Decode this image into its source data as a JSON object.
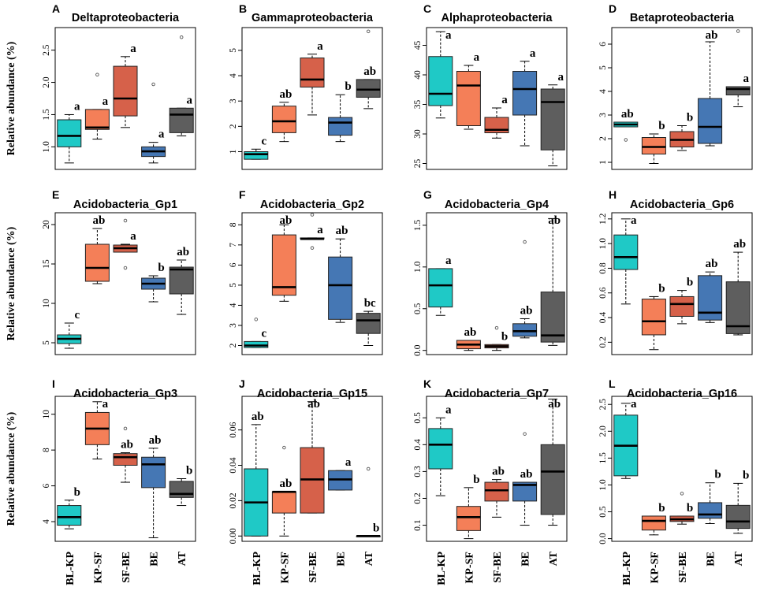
{
  "y_axis_label": "Relative abundance (%)",
  "categories": [
    "BL-KP",
    "KP-SF",
    "SF-BE",
    "BE",
    "AT"
  ],
  "colors": [
    "#1fc9c6",
    "#f47f58",
    "#d6614a",
    "#4577b4",
    "#5e5e5e"
  ],
  "chart_data": [
    {
      "type": "box",
      "letter": "A",
      "title": "Deltaproteobacteria",
      "ylim": [
        0.65,
        2.85
      ],
      "ticks": [
        1.0,
        1.5,
        2.0,
        2.5
      ],
      "tick_labels": [
        "1.0",
        "1.5",
        "2.0",
        "2.5"
      ],
      "boxes": [
        {
          "wl": 0.75,
          "q1": 1.0,
          "med": 1.17,
          "q3": 1.42,
          "wh": 1.5,
          "out": []
        },
        {
          "wl": 1.12,
          "q1": 1.27,
          "med": 1.3,
          "q3": 1.58,
          "wh": 1.58,
          "out": [
            2.12
          ]
        },
        {
          "wl": 1.3,
          "q1": 1.48,
          "med": 1.75,
          "q3": 2.25,
          "wh": 2.4,
          "out": []
        },
        {
          "wl": 0.75,
          "q1": 0.85,
          "med": 0.93,
          "q3": 1.0,
          "wh": 1.07,
          "out": [
            1.97
          ]
        },
        {
          "wl": 1.17,
          "q1": 1.22,
          "med": 1.5,
          "q3": 1.6,
          "wh": 1.6,
          "out": [
            2.7
          ]
        }
      ],
      "sig": [
        "a",
        "a",
        "a",
        "a",
        "a"
      ]
    },
    {
      "type": "box",
      "letter": "B",
      "title": "Gammaproteobacteria",
      "ylim": [
        0.3,
        5.9
      ],
      "ticks": [
        1,
        2,
        3,
        4,
        5
      ],
      "tick_labels": [
        "1",
        "2",
        "3",
        "4",
        "5"
      ],
      "boxes": [
        {
          "wl": 0.7,
          "q1": 0.7,
          "med": 0.9,
          "q3": 1.0,
          "wh": 1.1,
          "out": []
        },
        {
          "wl": 1.4,
          "q1": 1.75,
          "med": 2.2,
          "q3": 2.8,
          "wh": 2.95,
          "out": []
        },
        {
          "wl": 2.45,
          "q1": 3.55,
          "med": 3.85,
          "q3": 4.7,
          "wh": 4.85,
          "out": []
        },
        {
          "wl": 1.4,
          "q1": 1.65,
          "med": 2.15,
          "q3": 2.35,
          "wh": 3.25,
          "out": []
        },
        {
          "wl": 2.7,
          "q1": 3.15,
          "med": 3.45,
          "q3": 3.85,
          "wh": 3.85,
          "out": [
            5.75
          ]
        }
      ],
      "sig": [
        "c",
        "ab",
        "a",
        "b",
        "ab"
      ]
    },
    {
      "type": "box",
      "letter": "C",
      "title": "Alphaproteobacteria",
      "ylim": [
        24,
        48
      ],
      "ticks": [
        25,
        30,
        35,
        40,
        45
      ],
      "tick_labels": [
        "25",
        "30",
        "35",
        "40",
        "45"
      ],
      "boxes": [
        {
          "wl": 32.7,
          "q1": 34.8,
          "med": 36.8,
          "q3": 43.1,
          "wh": 47.3,
          "out": []
        },
        {
          "wl": 30.8,
          "q1": 31.4,
          "med": 38.2,
          "q3": 40.6,
          "wh": 41.6,
          "out": []
        },
        {
          "wl": 29.3,
          "q1": 30.2,
          "med": 30.7,
          "q3": 32.8,
          "wh": 34.4,
          "out": []
        },
        {
          "wl": 28.0,
          "q1": 33.2,
          "med": 37.6,
          "q3": 40.6,
          "wh": 42.3,
          "out": []
        },
        {
          "wl": 24.6,
          "q1": 27.3,
          "med": 35.4,
          "q3": 37.6,
          "wh": 38.3,
          "out": []
        }
      ],
      "sig": [
        "a",
        "a",
        "a",
        "a",
        "a"
      ]
    },
    {
      "type": "box",
      "letter": "D",
      "title": "Betaproteobacteria",
      "ylim": [
        0.7,
        6.7
      ],
      "ticks": [
        1,
        2,
        3,
        4,
        5,
        6
      ],
      "tick_labels": [
        "1",
        "2",
        "3",
        "4",
        "5",
        "6"
      ],
      "boxes": [
        {
          "wl": 2.5,
          "q1": 2.5,
          "med": 2.6,
          "q3": 2.7,
          "wh": 2.7,
          "out": [
            1.95
          ]
        },
        {
          "wl": 0.95,
          "q1": 1.35,
          "med": 1.65,
          "q3": 2.05,
          "wh": 2.2,
          "out": []
        },
        {
          "wl": 1.5,
          "q1": 1.65,
          "med": 1.95,
          "q3": 2.3,
          "wh": 2.55,
          "out": []
        },
        {
          "wl": 1.7,
          "q1": 1.8,
          "med": 2.5,
          "q3": 3.7,
          "wh": 6.1,
          "out": []
        },
        {
          "wl": 3.35,
          "q1": 3.85,
          "med": 4.1,
          "q3": 4.2,
          "wh": 4.2,
          "out": [
            6.55
          ]
        }
      ],
      "sig": [
        "ab",
        "b",
        "b",
        "ab",
        "a"
      ]
    },
    {
      "type": "box",
      "letter": "E",
      "title": "Acidobacteria_Gp1",
      "ylim": [
        3.5,
        21.5
      ],
      "ticks": [
        5,
        10,
        15,
        20
      ],
      "tick_labels": [
        "5",
        "10",
        "15",
        "20"
      ],
      "boxes": [
        {
          "wl": 4.3,
          "q1": 4.9,
          "med": 5.5,
          "q3": 6.0,
          "wh": 7.5,
          "out": []
        },
        {
          "wl": 12.5,
          "q1": 12.8,
          "med": 14.5,
          "q3": 17.5,
          "wh": 19.5,
          "out": []
        },
        {
          "wl": 16.5,
          "q1": 16.5,
          "med": 17.0,
          "q3": 17.4,
          "wh": 17.5,
          "out": [
            14.5,
            20.5
          ]
        },
        {
          "wl": 10.2,
          "q1": 11.8,
          "med": 12.5,
          "q3": 13.2,
          "wh": 13.5,
          "out": []
        },
        {
          "wl": 8.6,
          "q1": 11.2,
          "med": 14.3,
          "q3": 14.6,
          "wh": 15.5,
          "out": []
        }
      ],
      "sig": [
        "c",
        "ab",
        "a",
        "b",
        "ab"
      ]
    },
    {
      "type": "box",
      "letter": "F",
      "title": "Acidobacteria_Gp2",
      "ylim": [
        1.55,
        8.6
      ],
      "ticks": [
        2,
        3,
        4,
        5,
        6,
        7,
        8
      ],
      "tick_labels": [
        "2",
        "3",
        "4",
        "5",
        "6",
        "7",
        "8"
      ],
      "boxes": [
        {
          "wl": 1.9,
          "q1": 1.9,
          "med": 2.0,
          "q3": 2.2,
          "wh": 2.2,
          "out": [
            3.3
          ]
        },
        {
          "wl": 4.2,
          "q1": 4.5,
          "med": 4.9,
          "q3": 7.5,
          "wh": 8.0,
          "out": []
        },
        {
          "wl": 7.3,
          "q1": 7.3,
          "med": 7.3,
          "q3": 7.35,
          "wh": 7.35,
          "out": [
            6.85,
            8.5
          ]
        },
        {
          "wl": 3.15,
          "q1": 3.3,
          "med": 5.0,
          "q3": 6.4,
          "wh": 7.3,
          "out": []
        },
        {
          "wl": 2.0,
          "q1": 2.6,
          "med": 3.25,
          "q3": 3.6,
          "wh": 3.7,
          "out": []
        }
      ],
      "sig": [
        "c",
        "ab",
        "a",
        "ab",
        "bc"
      ]
    },
    {
      "type": "box",
      "letter": "G",
      "title": "Acidobacteria_Gp4",
      "ylim": [
        -0.05,
        1.65
      ],
      "ticks": [
        0.0,
        0.5,
        1.0,
        1.5
      ],
      "tick_labels": [
        "0.0",
        "0.5",
        "1.0",
        "1.5"
      ],
      "boxes": [
        {
          "wl": 0.42,
          "q1": 0.52,
          "med": 0.78,
          "q3": 0.98,
          "wh": 0.98,
          "out": []
        },
        {
          "wl": 0.0,
          "q1": 0.02,
          "med": 0.07,
          "q3": 0.12,
          "wh": 0.12,
          "out": []
        },
        {
          "wl": 0.0,
          "q1": 0.03,
          "med": 0.05,
          "q3": 0.07,
          "wh": 0.07,
          "out": [
            0.27
          ]
        },
        {
          "wl": 0.15,
          "q1": 0.17,
          "med": 0.23,
          "q3": 0.32,
          "wh": 0.38,
          "out": [
            1.3
          ]
        },
        {
          "wl": 0.06,
          "q1": 0.1,
          "med": 0.18,
          "q3": 0.7,
          "wh": 1.58,
          "out": []
        }
      ],
      "sig": [
        "a",
        "ab",
        "b",
        "ab",
        "ab"
      ]
    },
    {
      "type": "box",
      "letter": "H",
      "title": "Acidobacteria_Gp6",
      "ylim": [
        0.1,
        1.25
      ],
      "ticks": [
        0.2,
        0.4,
        0.6,
        0.8,
        1.0,
        1.2
      ],
      "tick_labels": [
        "0.2",
        "0.4",
        "0.6",
        "0.8",
        "1.0",
        "1.2"
      ],
      "boxes": [
        {
          "wl": 0.51,
          "q1": 0.79,
          "med": 0.89,
          "q3": 1.07,
          "wh": 1.2,
          "out": []
        },
        {
          "wl": 0.14,
          "q1": 0.26,
          "med": 0.37,
          "q3": 0.55,
          "wh": 0.57,
          "out": []
        },
        {
          "wl": 0.35,
          "q1": 0.41,
          "med": 0.51,
          "q3": 0.57,
          "wh": 0.62,
          "out": []
        },
        {
          "wl": 0.36,
          "q1": 0.38,
          "med": 0.44,
          "q3": 0.74,
          "wh": 0.77,
          "out": []
        },
        {
          "wl": 0.26,
          "q1": 0.27,
          "med": 0.33,
          "q3": 0.69,
          "wh": 0.93,
          "out": []
        }
      ],
      "sig": [
        "a",
        "b",
        "b",
        "ab",
        "ab"
      ]
    },
    {
      "type": "box",
      "letter": "I",
      "title": "Acidobacteria_Gp3",
      "ylim": [
        2.9,
        11.0
      ],
      "ticks": [
        4,
        6,
        8,
        10
      ],
      "tick_labels": [
        "4",
        "6",
        "8",
        "10"
      ],
      "boxes": [
        {
          "wl": 3.6,
          "q1": 3.8,
          "med": 4.25,
          "q3": 4.9,
          "wh": 5.2,
          "out": []
        },
        {
          "wl": 7.5,
          "q1": 8.3,
          "med": 9.2,
          "q3": 10.1,
          "wh": 10.7,
          "out": []
        },
        {
          "wl": 6.2,
          "q1": 7.15,
          "med": 7.6,
          "q3": 7.8,
          "wh": 7.85,
          "out": [
            9.2
          ]
        },
        {
          "wl": 3.1,
          "q1": 5.9,
          "med": 7.2,
          "q3": 7.6,
          "wh": 8.1,
          "out": []
        },
        {
          "wl": 4.9,
          "q1": 5.35,
          "med": 5.55,
          "q3": 6.25,
          "wh": 6.4,
          "out": []
        }
      ],
      "sig": [
        "b",
        "a",
        "ab",
        "ab",
        "b"
      ]
    },
    {
      "type": "box",
      "letter": "J",
      "title": "Acidobacteria_Gp15",
      "ylim": [
        -0.003,
        0.079
      ],
      "ticks": [
        0.0,
        0.02,
        0.04,
        0.06
      ],
      "tick_labels": [
        "0.00",
        "0.02",
        "0.04",
        "0.06"
      ],
      "boxes": [
        {
          "wl": 0.0,
          "q1": 0.0,
          "med": 0.019,
          "q3": 0.038,
          "wh": 0.063,
          "out": []
        },
        {
          "wl": 0.0,
          "q1": 0.013,
          "med": 0.025,
          "q3": 0.025,
          "wh": 0.025,
          "out": [
            0.05
          ]
        },
        {
          "wl": 0.013,
          "q1": 0.013,
          "med": 0.032,
          "q3": 0.05,
          "wh": 0.076,
          "out": []
        },
        {
          "wl": 0.026,
          "q1": 0.026,
          "med": 0.032,
          "q3": 0.037,
          "wh": 0.037,
          "out": []
        },
        {
          "wl": 0.0,
          "q1": 0.0,
          "med": 0.0,
          "q3": 0.0,
          "wh": 0.0,
          "out": [
            0.038
          ]
        }
      ],
      "sig": [
        "ab",
        "ab",
        "ab",
        "a",
        "b"
      ]
    },
    {
      "type": "box",
      "letter": "K",
      "title": "Acidobacteria_Gp7",
      "ylim": [
        0.04,
        0.58
      ],
      "ticks": [
        0.1,
        0.2,
        0.3,
        0.4,
        0.5
      ],
      "tick_labels": [
        "0.1",
        "0.2",
        "0.3",
        "0.4",
        "0.5"
      ],
      "boxes": [
        {
          "wl": 0.21,
          "q1": 0.31,
          "med": 0.4,
          "q3": 0.46,
          "wh": 0.5,
          "out": []
        },
        {
          "wl": 0.05,
          "q1": 0.08,
          "med": 0.13,
          "q3": 0.17,
          "wh": 0.24,
          "out": []
        },
        {
          "wl": 0.13,
          "q1": 0.19,
          "med": 0.23,
          "q3": 0.26,
          "wh": 0.27,
          "out": []
        },
        {
          "wl": 0.1,
          "q1": 0.19,
          "med": 0.25,
          "q3": 0.26,
          "wh": 0.26,
          "out": [
            0.44
          ]
        },
        {
          "wl": 0.1,
          "q1": 0.14,
          "med": 0.3,
          "q3": 0.4,
          "wh": 0.57,
          "out": []
        }
      ],
      "sig": [
        "a",
        "b",
        "ab",
        "ab",
        "ab"
      ]
    },
    {
      "type": "box",
      "letter": "L",
      "title": "Acidobacteria_Gp16",
      "ylim": [
        -0.05,
        2.65
      ],
      "ticks": [
        0.0,
        0.5,
        1.0,
        1.5,
        2.0,
        2.5
      ],
      "tick_labels": [
        "0.0",
        "0.5",
        "1.0",
        "1.5",
        "2.0",
        "2.5"
      ],
      "boxes": [
        {
          "wl": 1.12,
          "q1": 1.17,
          "med": 1.73,
          "q3": 2.3,
          "wh": 2.52,
          "out": []
        },
        {
          "wl": 0.07,
          "q1": 0.16,
          "med": 0.33,
          "q3": 0.42,
          "wh": 0.42,
          "out": []
        },
        {
          "wl": 0.27,
          "q1": 0.32,
          "med": 0.36,
          "q3": 0.42,
          "wh": 0.42,
          "out": [
            0.84
          ]
        },
        {
          "wl": 0.28,
          "q1": 0.38,
          "med": 0.45,
          "q3": 0.67,
          "wh": 1.04,
          "out": []
        },
        {
          "wl": 0.1,
          "q1": 0.19,
          "med": 0.32,
          "q3": 0.62,
          "wh": 1.03,
          "out": []
        }
      ],
      "sig": [
        "a",
        "b",
        "b",
        "b",
        "b"
      ]
    }
  ]
}
